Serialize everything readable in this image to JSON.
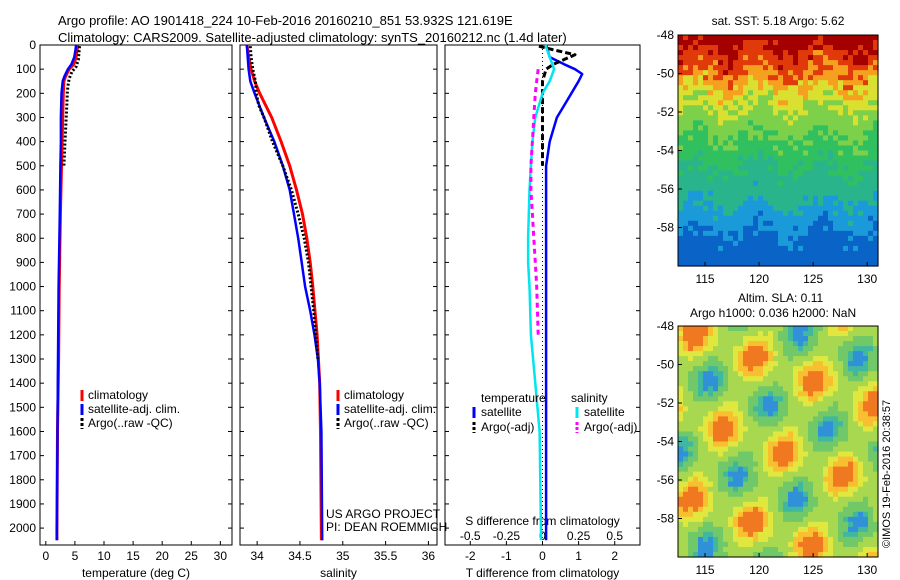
{
  "header": {
    "line1": "Argo profile: AO 1901418_224 10-Feb-2016 20160210_851 53.932S 121.619E",
    "line2": "Climatology: CARS2009. Satellite-adjusted climatology: synTS_20160212.nc (1.4d later)"
  },
  "credits": {
    "project": "US ARGO PROJECT",
    "pi": "PI: DEAN ROEMMICH",
    "stamp": "©IMOS 19-Feb-2016 20:38:57"
  },
  "colors": {
    "climatology": "#ff0000",
    "satellite_adj": "#0000ff",
    "argo": "#000000",
    "s_satellite": "#00e5ee",
    "s_argo": "#ff00ff"
  },
  "chart_data": [
    {
      "type": "line",
      "xlabel": "temperature (deg C)",
      "ylabel": "",
      "xlim": [
        -1,
        32
      ],
      "ylim": [
        2070,
        0
      ],
      "xticks": [
        "0",
        "5",
        "10",
        "15",
        "20",
        "25",
        "30"
      ],
      "yticks": [
        "0",
        "100",
        "200",
        "300",
        "400",
        "500",
        "600",
        "700",
        "800",
        "900",
        "1000",
        "1100",
        "1200",
        "1300",
        "1400",
        "1500",
        "1600",
        "1700",
        "1800",
        "1900",
        "2000"
      ],
      "legend": [
        "climatology",
        "satellite-adj. clim.",
        "Argo(..raw -QC)"
      ],
      "legend_position": "lower-middle",
      "series": [
        {
          "name": "climatology",
          "depth": [
            0,
            20,
            50,
            80,
            100,
            130,
            150,
            200,
            300,
            400,
            500,
            700,
            1000,
            1300,
            1600,
            2000,
            2050
          ],
          "values": [
            5.5,
            5.4,
            5.2,
            4.8,
            4.0,
            3.4,
            3.1,
            3.0,
            2.9,
            2.8,
            2.7,
            2.5,
            2.3,
            2.2,
            2.0,
            1.9,
            1.9
          ]
        },
        {
          "name": "satellite-adj. clim.",
          "depth": [
            0,
            20,
            50,
            80,
            100,
            130,
            150,
            200,
            300,
            400,
            500,
            700,
            1000,
            1300,
            1600,
            2000,
            2050
          ],
          "values": [
            5.2,
            5.1,
            4.9,
            4.4,
            3.8,
            3.2,
            2.9,
            2.7,
            2.6,
            2.6,
            2.5,
            2.4,
            2.2,
            2.1,
            2.0,
            1.9,
            1.9
          ]
        },
        {
          "name": "Argo(..raw -QC)",
          "depth": [
            5,
            30,
            60,
            90,
            110,
            140,
            170,
            200,
            250,
            300,
            400,
            500
          ],
          "values": [
            5.8,
            5.7,
            5.6,
            5.2,
            4.5,
            4.0,
            3.8,
            3.7,
            3.6,
            3.5,
            3.3,
            3.1
          ]
        }
      ]
    },
    {
      "type": "line",
      "xlabel": "salinity",
      "xlim": [
        33.8,
        36.1
      ],
      "ylim": [
        2070,
        0
      ],
      "xticks": [
        "34",
        "34.5",
        "35",
        "35.5",
        "36"
      ],
      "legend": [
        "climatology",
        "satellite-adj. clim.",
        "Argo(..raw -QC)"
      ],
      "legend_position": "lower-middle",
      "series": [
        {
          "name": "climatology",
          "depth": [
            0,
            50,
            100,
            150,
            200,
            300,
            400,
            500,
            600,
            700,
            800,
            900,
            1000,
            1200,
            1400,
            1600,
            2050
          ],
          "values": [
            33.88,
            33.9,
            33.93,
            33.97,
            34.03,
            34.17,
            34.28,
            34.38,
            34.46,
            34.53,
            34.58,
            34.62,
            34.65,
            34.7,
            34.73,
            34.74,
            34.75
          ]
        },
        {
          "name": "satellite-adj. clim.",
          "depth": [
            0,
            50,
            100,
            150,
            200,
            300,
            400,
            500,
            600,
            700,
            800,
            900,
            1000,
            1100,
            1200,
            1300,
            1400,
            1600,
            2050
          ],
          "values": [
            33.88,
            33.89,
            33.9,
            33.92,
            33.97,
            34.08,
            34.2,
            34.3,
            34.38,
            34.43,
            34.48,
            34.52,
            34.56,
            34.62,
            34.67,
            34.71,
            34.73,
            34.75,
            34.76
          ]
        },
        {
          "name": "Argo(..raw -QC)",
          "depth": [
            5,
            50,
            100,
            150,
            200,
            250,
            300,
            400,
            500,
            600,
            700,
            800,
            900,
            1000,
            1100,
            1300
          ],
          "values": [
            33.92,
            33.93,
            33.95,
            33.98,
            33.99,
            34.02,
            34.08,
            34.18,
            34.3,
            34.4,
            34.48,
            34.55,
            34.6,
            34.63,
            34.66,
            34.71
          ]
        }
      ]
    },
    {
      "type": "line",
      "xlabel": "T difference from climatology",
      "title_bottom": "S difference from climatology",
      "xlim": [
        -2.7,
        2.7
      ],
      "ylim": [
        2070,
        0
      ],
      "xticks": [
        "-2",
        "-1",
        "0",
        "1",
        "2"
      ],
      "s_xticks": [
        "-0.5",
        "-0.25",
        "0",
        "0.25",
        "0.5"
      ],
      "legend_titles": [
        "temperature",
        "salinity"
      ],
      "legend": [
        "satellite",
        "Argo(-adj)",
        "satellite",
        "Argo(-adj)"
      ],
      "legend_position": "lower",
      "series": [
        {
          "name": "temperature satellite",
          "depth": [
            0,
            50,
            80,
            100,
            120,
            150,
            200,
            250,
            300,
            350,
            400,
            450,
            500,
            600,
            800,
            1000,
            1400,
            1800,
            2050
          ],
          "values": [
            0.1,
            0.2,
            0.6,
            0.9,
            1.1,
            1.0,
            0.8,
            0.6,
            0.4,
            0.3,
            0.2,
            0.15,
            0.1,
            0.1,
            0.1,
            0.1,
            0.1,
            0.1,
            0.1
          ]
        },
        {
          "name": "temperature Argo(-adj)",
          "depth": [
            5,
            20,
            40,
            60,
            80,
            100,
            150,
            200,
            250,
            300,
            400,
            500
          ],
          "values": [
            -0.1,
            0.3,
            0.9,
            0.6,
            0.3,
            0.1,
            0.0,
            0.0,
            0.0,
            0.0,
            0.0,
            0.0
          ]
        },
        {
          "name": "salinity satellite",
          "depth": [
            0,
            50,
            100,
            150,
            200,
            300,
            400,
            500,
            600,
            800,
            900,
            1000,
            1200,
            1400,
            1600,
            2050
          ],
          "values": [
            0.02,
            0.05,
            0.08,
            0.05,
            0.0,
            -0.05,
            -0.07,
            -0.08,
            -0.09,
            -0.1,
            -0.1,
            -0.09,
            -0.08,
            -0.05,
            -0.02,
            -0.01
          ]
        },
        {
          "name": "salinity Argo(-adj)",
          "depth": [
            100,
            150,
            200,
            300,
            400,
            500,
            600,
            700,
            800,
            900,
            1000,
            1200
          ],
          "values": [
            -0.03,
            -0.04,
            -0.05,
            -0.06,
            -0.07,
            -0.08,
            -0.08,
            -0.07,
            -0.06,
            -0.05,
            -0.04,
            -0.03
          ]
        }
      ]
    },
    {
      "type": "heatmap",
      "title": "sat. SST: 5.18 Argo: 5.62",
      "xlim": [
        112.5,
        131
      ],
      "ylim": [
        -60,
        -48
      ],
      "xticks": [
        "115",
        "120",
        "125",
        "130"
      ],
      "yticks": [
        "-48",
        "-50",
        "-52",
        "-54",
        "-56",
        "-58"
      ]
    },
    {
      "type": "heatmap",
      "title": "Altim. SLA: 0.11",
      "subtitle": "Argo h1000: 0.036 h2000: NaN",
      "xlim": [
        112.5,
        131
      ],
      "ylim": [
        -60,
        -48
      ],
      "xticks": [
        "115",
        "120",
        "125",
        "130"
      ],
      "yticks": [
        "-48",
        "-50",
        "-52",
        "-54",
        "-56",
        "-58"
      ]
    }
  ]
}
